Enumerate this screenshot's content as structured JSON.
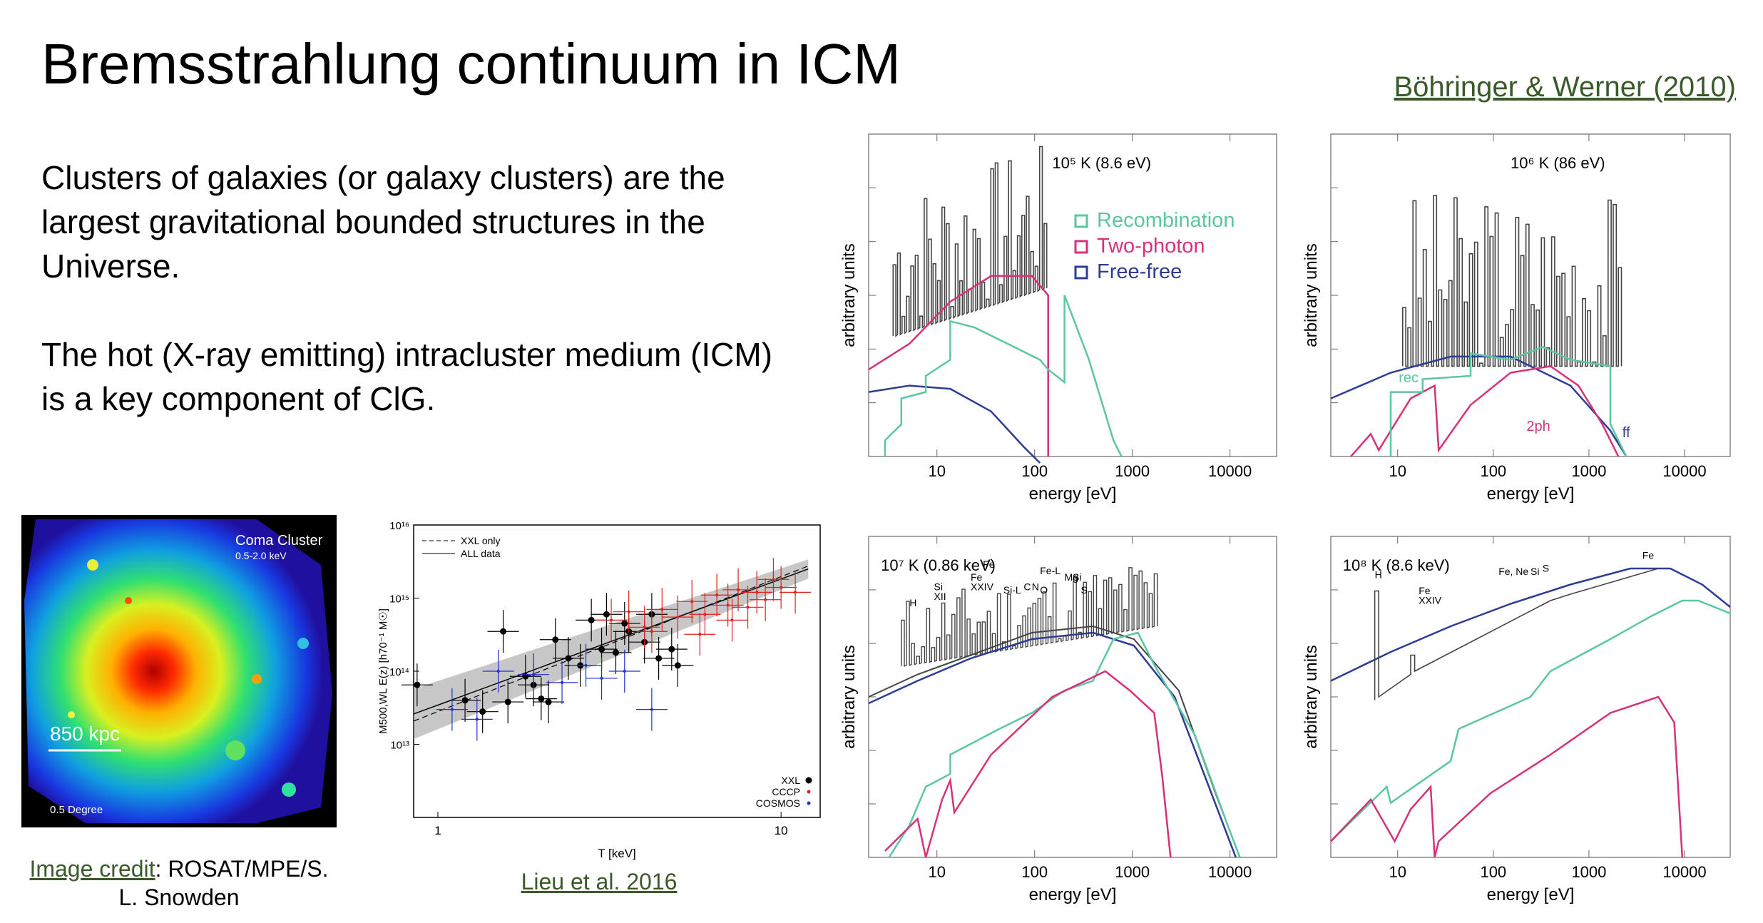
{
  "slide": {
    "title": "Bremsstrahlung continuum in ICM",
    "reference": "Böhringer & Werner (2010)",
    "paragraph1": "Clusters of galaxies (or galaxy clusters) are the largest gravitational bounded structures in the Universe.",
    "paragraph2": "The hot (X-ray emitting) intracluster medium (ICM) is a key component of ClG."
  },
  "coma_image": {
    "name": "Coma Cluster",
    "band": "0.5-2.0 keV",
    "scale_label": "850 kpc",
    "degree_label": "0.5 Degree"
  },
  "credit": {
    "link_text": "Image credit",
    "rest_text": ": ROSAT/MPE/S. L. Snowden"
  },
  "lieu_caption": "Lieu et al. 2016",
  "colors": {
    "recombination": "#5cc6a2",
    "two_photon": "#d6317a",
    "free_free": "#2e3c96",
    "total": "#444444",
    "link_green": "#3b5a2a",
    "xxl": "#000000",
    "cccp": "#e02020",
    "cosmos": "#2030d0"
  },
  "spectra_common": {
    "xlabel": "energy [eV]",
    "ylabel": "arbitrary units",
    "xticks": [
      "10",
      "100",
      "1000",
      "10000"
    ]
  },
  "spectra": [
    {
      "temp_label": "10⁵ K (8.6 eV)",
      "legend": [
        "Recombination",
        "Two-photon",
        "Free-free"
      ],
      "curve_labels": []
    },
    {
      "temp_label": "10⁶ K (86 eV)",
      "legend": [],
      "curve_labels": [
        "rec",
        "2ph",
        "ff"
      ]
    },
    {
      "temp_label": "10⁷ K (0.86 keV)",
      "legend": [],
      "line_labels": [
        "H",
        "Si",
        "XII",
        "Fe",
        "XXIV",
        "Fe",
        "Si-L",
        "C",
        "N",
        "O",
        "Fe-L",
        "Mg",
        "Si",
        "S"
      ]
    },
    {
      "temp_label": "10⁸ K (8.6 keV)",
      "legend": [],
      "line_labels": [
        "H",
        "Fe",
        "XXIV",
        "Fe, Ne",
        "Si",
        "S",
        "Fe"
      ]
    }
  ],
  "chart_data": {
    "type": "scatter",
    "xlabel": "T [keV]",
    "ylabel": "M500,WL E(z) [h70⁻¹ M☉]",
    "xscale": "log",
    "yscale": "log",
    "xlim": [
      0.85,
      13
    ],
    "ylim": [
      1000000000000.0,
      1e+16
    ],
    "xticks": [
      "1",
      "10"
    ],
    "yticks": [
      "10¹³",
      "10¹⁴",
      "10¹⁵",
      "10¹⁶"
    ],
    "line_legend": [
      "XXL only",
      "ALL data"
    ],
    "legend_position": "bottom-right",
    "series": [
      {
        "name": "XXL",
        "x": [
          0.87,
          1.2,
          1.35,
          1.55,
          1.6,
          1.8,
          1.9,
          2.0,
          2.1,
          2.2,
          2.4,
          2.6,
          2.8,
          3.0,
          3.1,
          3.3,
          3.5,
          3.6,
          4.0,
          4.2,
          4.4,
          4.8,
          5.0
        ],
        "y": [
          65000000000000.0,
          40000000000000.0,
          28000000000000.0,
          350000000000000.0,
          38000000000000.0,
          85000000000000.0,
          65000000000000.0,
          42000000000000.0,
          38000000000000.0,
          270000000000000.0,
          150000000000000.0,
          120000000000000.0,
          500000000000000.0,
          200000000000000.0,
          600000000000000.0,
          180000000000000.0,
          450000000000000.0,
          350000000000000.0,
          250000000000000.0,
          600000000000000.0,
          150000000000000.0,
          200000000000000.0,
          120000000000000.0
        ]
      },
      {
        "name": "CCCP",
        "x": [
          3.2,
          3.6,
          4.0,
          4.5,
          5.0,
          5.5,
          6.0,
          6.5,
          7.0,
          7.5,
          8.0,
          8.5,
          9.0,
          10.0,
          11.0,
          4.2,
          5.8,
          7.2,
          9.5
        ],
        "y": [
          500000000000000.0,
          650000000000000.0,
          400000000000000.0,
          700000000000000.0,
          550000000000000.0,
          900000000000000.0,
          600000000000000.0,
          1100000000000000.0,
          800000000000000.0,
          1300000000000000.0,
          750000000000000.0,
          1200000000000000.0,
          950000000000000.0,
          1400000000000000.0,
          1200000000000000.0,
          350000000000000.0,
          320000000000000.0,
          500000000000000.0,
          1800000000000000.0
        ]
      },
      {
        "name": "COSMOS",
        "x": [
          1.1,
          1.3,
          1.5,
          1.9,
          2.3,
          2.7,
          3.0,
          3.5,
          4.2
        ],
        "y": [
          30000000000000.0,
          22000000000000.0,
          100000000000000.0,
          90000000000000.0,
          70000000000000.0,
          120000000000000.0,
          80000000000000.0,
          100000000000000.0,
          30000000000000.0
        ]
      }
    ],
    "fit_line": {
      "x": [
        0.85,
        12
      ],
      "y": [
        26000000000000.0,
        2500000000000000.0
      ]
    }
  }
}
